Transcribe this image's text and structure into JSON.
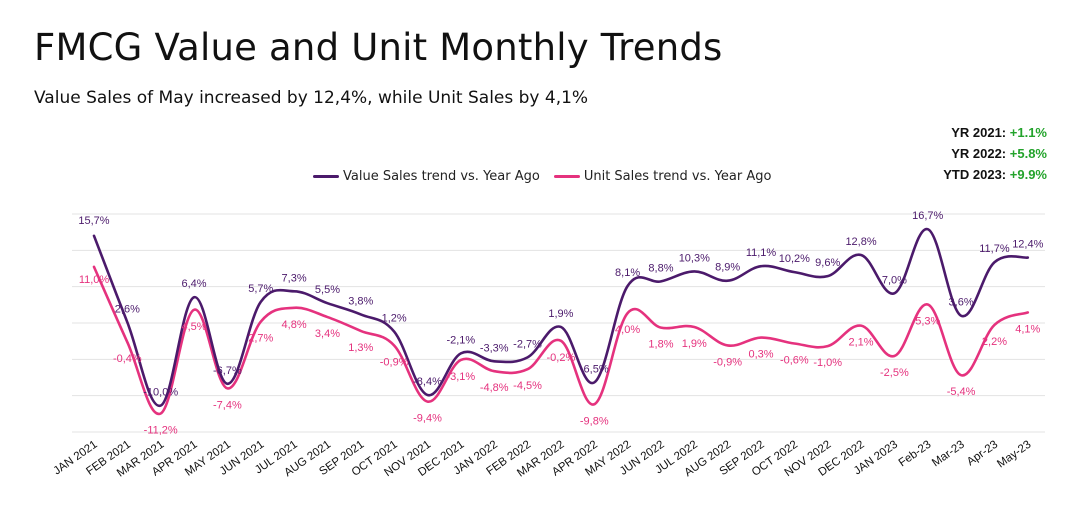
{
  "title": "FMCG Value and Unit Monthly Trends",
  "subtitle": "Value Sales of May increased by 12,4%, while Unit Sales by 4,1%",
  "summary": {
    "rows": [
      {
        "label": "YR 2021:",
        "value": "+1.1%"
      },
      {
        "label": "YR 2022:",
        "value": "+5.8%"
      },
      {
        "label": "YTD 2023:",
        "value": "+9.9%"
      }
    ],
    "positive_color": "#23a32b"
  },
  "chart_data": {
    "type": "line",
    "legend": "top-center",
    "grid": true,
    "ylim": [
      -14,
      19
    ],
    "categories": [
      "JAN 2021",
      "FEB 2021",
      "MAR 2021",
      "APR 2021",
      "MAY 2021",
      "JUN 2021",
      "JUL 2021",
      "AUG 2021",
      "SEP 2021",
      "OCT 2021",
      "NOV 2021",
      "DEC 2021",
      "JAN 2022",
      "FEB 2022",
      "MAR 2022",
      "APR 2022",
      "MAY 2022",
      "JUN 2022",
      "JUL 2022",
      "AUG 2022",
      "SEP 2022",
      "OCT 2022",
      "NOV 2022",
      "DEC 2022",
      "JAN 2023",
      "Feb-23",
      "Mar-23",
      "Apr-23",
      "May-23"
    ],
    "series": [
      {
        "name": "Value Sales trend vs. Year Ago",
        "color": "#4b1a6b",
        "values": [
          15.7,
          2.6,
          -10.0,
          6.4,
          -6.7,
          5.7,
          7.3,
          5.5,
          3.8,
          1.2,
          -8.4,
          -2.1,
          -3.3,
          -2.7,
          1.9,
          -6.5,
          8.1,
          8.8,
          10.3,
          8.9,
          11.1,
          10.2,
          9.6,
          12.8,
          7.0,
          16.7,
          3.6,
          11.7,
          12.4
        ],
        "labels": [
          "15,7%",
          "2,6%",
          "-10,0%",
          "6,4%",
          "-6,7%",
          "5,7%",
          "7,3%",
          "5,5%",
          "3,8%",
          "1,2%",
          "-8,4%",
          "-2,1%",
          "-3,3%",
          "-2,7%",
          "1,9%",
          "-6,5%",
          "8,1%",
          "8,8%",
          "10,3%",
          "8,9%",
          "11,1%",
          "10,2%",
          "9,6%",
          "12,8%",
          "7,0%",
          "16,7%",
          "3,6%",
          "11,7%",
          "12,4%"
        ]
      },
      {
        "name": "Unit Sales trend vs. Year Ago",
        "color": "#e5327e",
        "values": [
          11.0,
          -0.4,
          -11.2,
          4.5,
          -7.4,
          2.7,
          4.8,
          3.4,
          1.3,
          -0.9,
          -9.4,
          -3.1,
          -4.8,
          -4.5,
          -0.2,
          -9.8,
          4.0,
          1.8,
          1.9,
          -0.9,
          0.3,
          -0.6,
          -1.0,
          2.1,
          -2.5,
          5.3,
          -5.4,
          2.2,
          4.1
        ],
        "labels": [
          "11,0%",
          "-0,4%",
          "-11,2%",
          "4,5%",
          "-7,4%",
          "2,7%",
          "4,8%",
          "3,4%",
          "1,3%",
          "-0,9%",
          "-9,4%",
          "-3,1%",
          "-4,8%",
          "-4,5%",
          "-0,2%",
          "-9,8%",
          "4,0%",
          "1,8%",
          "1,9%",
          "-0,9%",
          "0,3%",
          "-0,6%",
          "-1,0%",
          "2,1%",
          "-2,5%",
          "5,3%",
          "-5,4%",
          "2,2%",
          "4,1%"
        ]
      }
    ]
  }
}
